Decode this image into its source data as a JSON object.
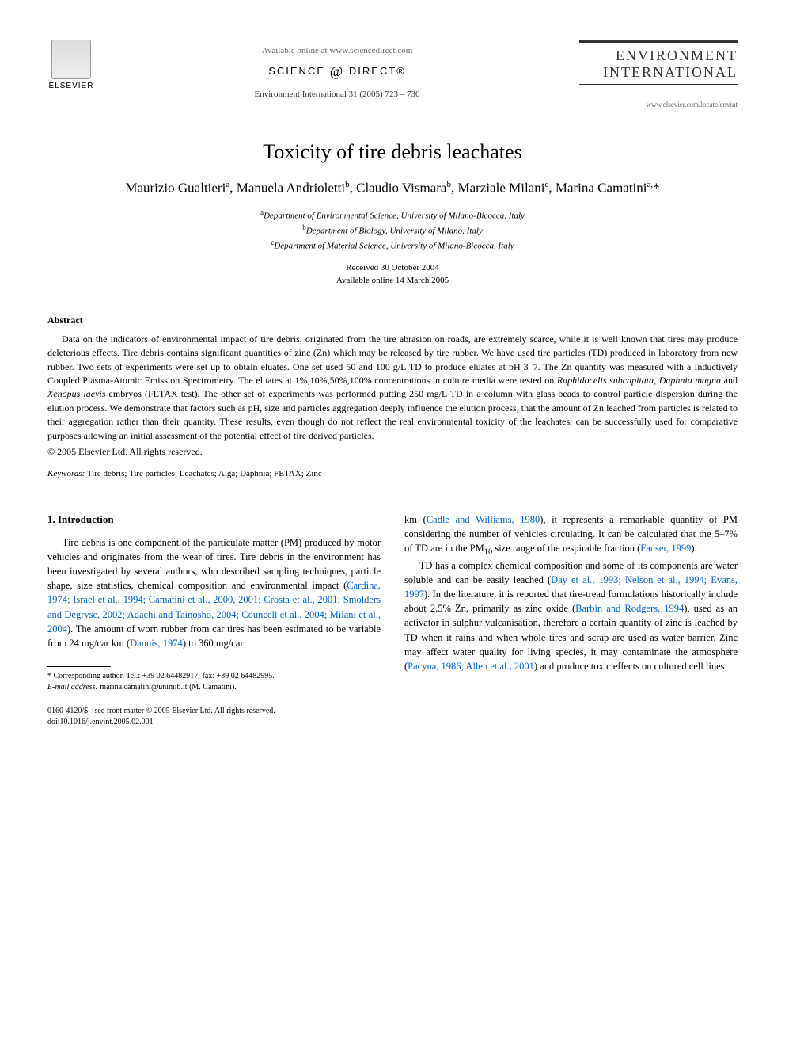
{
  "header": {
    "available_online": "Available online at www.sciencedirect.com",
    "science_direct": "SCIENCE",
    "science_direct2": "DIRECT®",
    "citation": "Environment International 31 (2005) 723 – 730",
    "publisher": "ELSEVIER",
    "journal_name": "ENVIRONMENT INTERNATIONAL",
    "journal_url": "www.elsevier.com/locate/envint"
  },
  "title": "Toxicity of tire debris leachates",
  "authors_html": "Maurizio Gualtieri<sup>a</sup>, Manuela Andrioletti<sup>b</sup>, Claudio Vismara<sup>b</sup>, Marziale Milani<sup>c</sup>, Marina Camatini<sup>a,</sup>*",
  "affiliations": {
    "a": "Department of Environmental Science, University of Milano-Bicocca, Italy",
    "b": "Department of Biology, University of Milano, Italy",
    "c": "Department of Material Science, University of Milano-Bicocca, Italy"
  },
  "dates": {
    "received": "Received 30 October 2004",
    "online": "Available online 14 March 2005"
  },
  "abstract": {
    "heading": "Abstract",
    "text_html": "Data on the indicators of environmental impact of tire debris, originated from the tire abrasion on roads, are extremely scarce, while it is well known that tires may produce deleterious effects. Tire debris contains significant quantities of zinc (Zn) which may be released by tire rubber. We have used tire particles (TD) produced in laboratory from new rubber. Two sets of experiments were set up to obtain eluates. One set used 50 and 100 g/L TD to produce eluates at pH 3–7. The Zn quantity was measured with a Inductively Coupled Plasma-Atomic Emission Spectrometry. The eluates at 1%,10%,50%,100% concentrations in culture media were tested on <em>Raphidocelis subcapitata</em>, <em>Daphnia magna</em> and <em>Xenopus laevis</em> embryos (FETAX test). The other set of experiments was performed putting 250 mg/L TD in a column with glass beads to control particle dispersion during the elution process. We demonstrate that factors such as pH, size and particles aggregation deeply influence the elution process, that the amount of Zn leached from particles is related to their aggregation rather than their quantity. These results, even though do not reflect the real environmental toxicity of the leachates, can be successfully used for comparative purposes allowing an initial assessment of the potential effect of tire derived particles.",
    "copyright": "© 2005 Elsevier Ltd. All rights reserved."
  },
  "keywords": {
    "label": "Keywords:",
    "text": "Tire debris; Tire particles; Leachates; Alga; Daphnia; FETAX; Zinc"
  },
  "introduction": {
    "heading": "1. Introduction",
    "col1_html": "Tire debris is one component of the particulate matter (PM) produced by motor vehicles and originates from the wear of tires. Tire debris in the environment has been investigated by several authors, who described sampling techniques, particle shape, size statistics, chemical composition and environmental impact (<span class=\"cite\">Cardina, 1974; Israel et al., 1994; Camatini et al., 2000, 2001; Crosta et al., 2001; Smolders and Degryse, 2002; Adachi and Tainosho, 2004; Councell et al., 2004; Milani et al., 2004</span>). The amount of worn rubber from car tires has been estimated to be variable from 24 mg/car km (<span class=\"cite\">Dannis, 1974</span>) to 360 mg/car",
    "col2_html": "km (<span class=\"cite\">Cadle and Williams, 1980</span>), it represents a remarkable quantity of PM considering the number of vehicles circulating. It can be calculated that the 5–7% of TD are in the PM<sub>10</sub> size range of the respirable fraction (<span class=\"cite\">Fauser, 1999</span>).",
    "col2_para2_html": "TD has a complex chemical composition and some of its components are water soluble and can be easily leached (<span class=\"cite\">Day et al., 1993; Nelson et al., 1994; Evans, 1997</span>). In the literature, it is reported that tire-tread formulations historically include about 2.5% Zn, primarily as zinc oxide (<span class=\"cite\">Barbin and Rodgers, 1994</span>), used as an activator in sulphur vulcanisation, therefore a certain quantity of zinc is leached by TD when it rains and when whole tires and scrap are used as water barrier. Zinc may affect water quality for living species, it may contaminate the atmosphere (<span class=\"cite\">Pacyna, 1986; Allen et al., 2001</span>) and produce toxic effects on cultured cell lines"
  },
  "footnote": {
    "corresponding": "* Corresponding author. Tel.: +39 02 64482917; fax: +39 02 64482995.",
    "email_label": "E-mail address:",
    "email": "marina.camatini@unimib.it (M. Camatini)."
  },
  "footer": {
    "line1": "0160-4120/$ - see front matter © 2005 Elsevier Ltd. All rights reserved.",
    "line2": "doi:10.1016/j.envint.2005.02.001"
  },
  "colors": {
    "citation_blue": "#0066cc",
    "text": "#000000",
    "muted": "#666666"
  }
}
